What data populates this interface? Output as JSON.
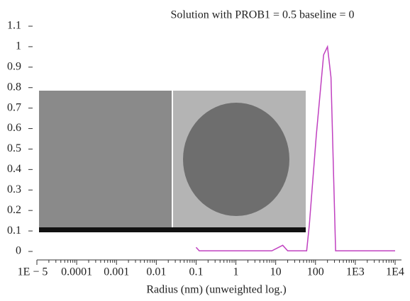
{
  "chart_data": {
    "type": "line",
    "title": "Solution with PROB1 = 0.5 baseline = 0",
    "x_label": "Radius (nm) (unweighted log.)",
    "x_scale": "log",
    "xlim": [
      1e-05,
      10000
    ],
    "xticks": [
      {
        "value": 1e-05,
        "label": "1E − 5"
      },
      0.0001,
      0.001,
      0.01,
      0.1,
      1,
      10,
      100,
      {
        "value": 1000,
        "label": "1E3"
      },
      {
        "value": 10000,
        "label": "1E4"
      }
    ],
    "ylim": [
      0,
      1.1
    ],
    "yticks": [
      0,
      0.1,
      0.2,
      0.3,
      0.4,
      0.5,
      0.6,
      0.7,
      0.8,
      0.9,
      1,
      1.1
    ],
    "series": [
      {
        "color": "#c040c0",
        "x": [
          0.1,
          0.12,
          8,
          15,
          20,
          60,
          70,
          105,
          160,
          200,
          245,
          320,
          10000
        ],
        "values": [
          0.02,
          0.003,
          0.003,
          0.03,
          0.003,
          0.003,
          0.13,
          0.57,
          0.96,
          1.0,
          0.85,
          0.003,
          0.003
        ]
      }
    ]
  }
}
